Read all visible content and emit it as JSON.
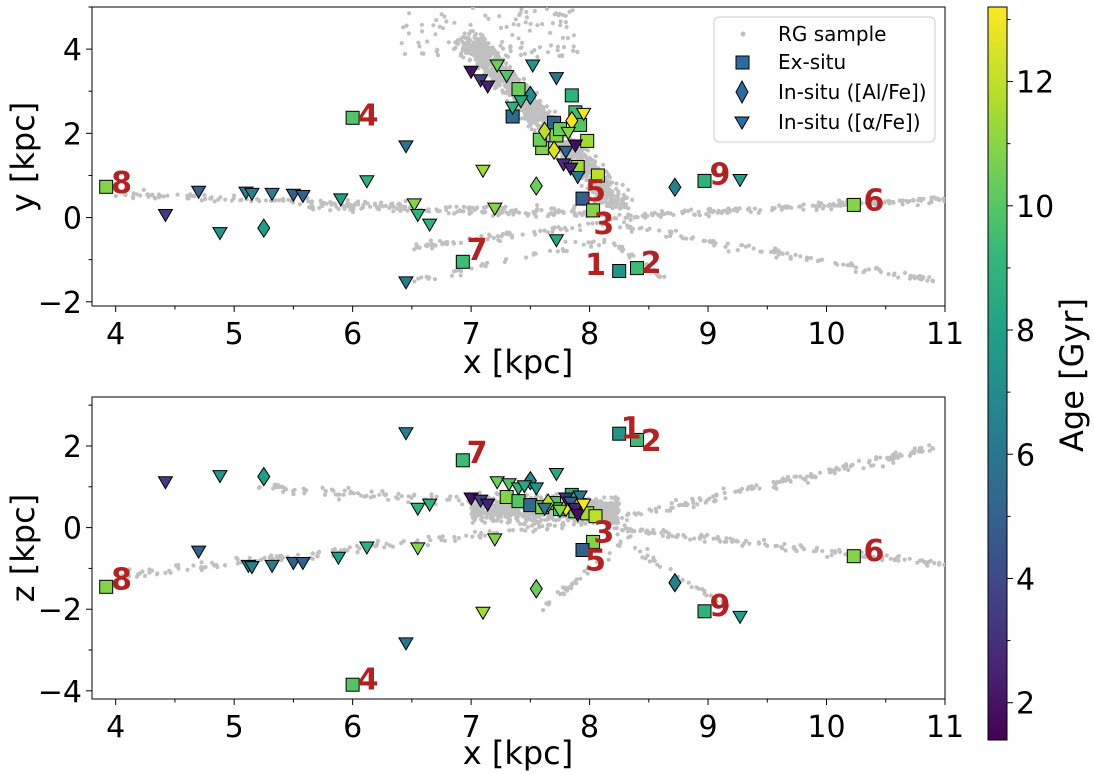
{
  "chart_data": [
    {
      "type": "scatter",
      "xlabel": "x [kpc]",
      "ylabel": "y [kpc]",
      "xlim": [
        3.8,
        11.0
      ],
      "ylim": [
        -2.1,
        5.0
      ],
      "xticks": [
        4,
        5,
        6,
        7,
        8,
        9,
        10,
        11
      ],
      "yticks": [
        -2,
        0,
        2,
        4
      ],
      "legend": {
        "position": "top-right",
        "entries": [
          {
            "label": "RG sample",
            "marker": "dot"
          },
          {
            "label": "Ex-situ",
            "marker": "square"
          },
          {
            "label": "In-situ ([Al/Fe])",
            "marker": "diamond"
          },
          {
            "label": "In-situ ([α/Fe])",
            "marker": "triangle"
          }
        ]
      },
      "labels": [
        {
          "text": "1",
          "x": 8.05,
          "y": -1.1
        },
        {
          "text": "2",
          "x": 8.52,
          "y": -1.05
        },
        {
          "text": "3",
          "x": 8.12,
          "y": -0.13
        },
        {
          "text": "4",
          "x": 6.13,
          "y": 2.45
        },
        {
          "text": "5",
          "x": 8.05,
          "y": 0.65
        },
        {
          "text": "6",
          "x": 10.4,
          "y": 0.43
        },
        {
          "text": "7",
          "x": 7.05,
          "y": -0.75
        },
        {
          "text": "8",
          "x": 4.05,
          "y": 0.85
        },
        {
          "text": "9",
          "x": 9.1,
          "y": 1.05
        }
      ],
      "series": [
        {
          "name": "Ex-situ",
          "marker": "square",
          "points": [
            {
              "x": 3.92,
              "y": 0.73,
              "age": 11.0
            },
            {
              "x": 6.0,
              "y": 2.37,
              "age": 10.0
            },
            {
              "x": 6.93,
              "y": -1.05,
              "age": 9.5
            },
            {
              "x": 7.6,
              "y": 1.65,
              "age": 11.0
            },
            {
              "x": 7.35,
              "y": 2.4,
              "age": 5.5
            },
            {
              "x": 7.4,
              "y": 3.05,
              "age": 10.5
            },
            {
              "x": 7.7,
              "y": 2.25,
              "age": 5.0
            },
            {
              "x": 7.72,
              "y": 1.95,
              "age": 11.0
            },
            {
              "x": 7.75,
              "y": 2.1,
              "age": 10.5
            },
            {
              "x": 7.85,
              "y": 2.9,
              "age": 9.0
            },
            {
              "x": 7.88,
              "y": 2.5,
              "age": 9.5
            },
            {
              "x": 7.92,
              "y": 2.2,
              "age": 10.0
            },
            {
              "x": 7.58,
              "y": 1.85,
              "age": 10.5
            },
            {
              "x": 7.98,
              "y": 1.82,
              "age": 11.5
            },
            {
              "x": 7.9,
              "y": 1.2,
              "age": 11.5
            },
            {
              "x": 8.07,
              "y": 1.0,
              "age": 12.0
            },
            {
              "x": 7.94,
              "y": 0.45,
              "age": 5.0
            },
            {
              "x": 8.03,
              "y": 0.17,
              "age": 11.0
            },
            {
              "x": 8.25,
              "y": -1.27,
              "age": 7.5
            },
            {
              "x": 8.4,
              "y": -1.2,
              "age": 9.5
            },
            {
              "x": 8.97,
              "y": 0.87,
              "age": 9.0
            },
            {
              "x": 10.23,
              "y": 0.3,
              "age": 11.0
            }
          ]
        },
        {
          "name": "In-situ ([Al/Fe])",
          "marker": "diamond",
          "points": [
            {
              "x": 5.25,
              "y": -0.25,
              "age": 8.0
            },
            {
              "x": 7.5,
              "y": 2.9,
              "age": 7.0
            },
            {
              "x": 7.55,
              "y": 0.75,
              "age": 10.5
            },
            {
              "x": 7.62,
              "y": 2.05,
              "age": 12.0
            },
            {
              "x": 7.7,
              "y": 1.6,
              "age": 12.5
            },
            {
              "x": 7.85,
              "y": 2.3,
              "age": 13.0
            },
            {
              "x": 8.72,
              "y": 0.72,
              "age": 6.5
            }
          ]
        },
        {
          "name": "In-situ ([α/Fe])",
          "marker": "triangle",
          "points": [
            {
              "x": 4.42,
              "y": 0.05,
              "age": 3.5
            },
            {
              "x": 4.7,
              "y": 0.6,
              "age": 5.0
            },
            {
              "x": 4.88,
              "y": -0.38,
              "age": 7.5
            },
            {
              "x": 5.1,
              "y": 0.58,
              "age": 6.5
            },
            {
              "x": 5.15,
              "y": 0.55,
              "age": 6.5
            },
            {
              "x": 5.32,
              "y": 0.55,
              "age": 6.5
            },
            {
              "x": 5.5,
              "y": 0.53,
              "age": 5.0
            },
            {
              "x": 5.58,
              "y": 0.5,
              "age": 5.0
            },
            {
              "x": 5.9,
              "y": 0.42,
              "age": 8.0
            },
            {
              "x": 6.12,
              "y": 0.85,
              "age": 9.0
            },
            {
              "x": 6.45,
              "y": 1.68,
              "age": 6.0
            },
            {
              "x": 6.45,
              "y": -1.55,
              "age": 6.5
            },
            {
              "x": 6.52,
              "y": 0.3,
              "age": 11.0
            },
            {
              "x": 6.55,
              "y": 0.05,
              "age": 9.0
            },
            {
              "x": 6.65,
              "y": -0.18,
              "age": 9.0
            },
            {
              "x": 7.0,
              "y": 3.45,
              "age": 2.0
            },
            {
              "x": 7.08,
              "y": 3.25,
              "age": 3.5
            },
            {
              "x": 7.14,
              "y": 3.1,
              "age": 2.5
            },
            {
              "x": 7.1,
              "y": 1.1,
              "age": 11.5
            },
            {
              "x": 7.2,
              "y": 0.2,
              "age": 11.0
            },
            {
              "x": 7.22,
              "y": 3.6,
              "age": 10.5
            },
            {
              "x": 7.3,
              "y": 3.35,
              "age": 10.0
            },
            {
              "x": 7.35,
              "y": 2.6,
              "age": 9.0
            },
            {
              "x": 7.42,
              "y": 2.75,
              "age": 8.5
            },
            {
              "x": 7.52,
              "y": 3.6,
              "age": 7.5
            },
            {
              "x": 7.72,
              "y": 3.3,
              "age": 6.0
            },
            {
              "x": 7.72,
              "y": -0.55,
              "age": 8.5
            },
            {
              "x": 7.78,
              "y": 1.25,
              "age": 3.0
            },
            {
              "x": 7.8,
              "y": 1.55,
              "age": 5.0
            },
            {
              "x": 7.84,
              "y": 1.15,
              "age": 2.5
            },
            {
              "x": 7.88,
              "y": 1.7,
              "age": 1.8
            },
            {
              "x": 7.9,
              "y": 0.95,
              "age": 6.0
            },
            {
              "x": 7.95,
              "y": 2.45,
              "age": 13.0
            },
            {
              "x": 7.82,
              "y": 2.0,
              "age": 11.0
            },
            {
              "x": 9.27,
              "y": 0.88,
              "age": 8.0
            }
          ]
        }
      ]
    },
    {
      "type": "scatter",
      "xlabel": "x [kpc]",
      "ylabel": "z [kpc]",
      "xlim": [
        3.8,
        11.0
      ],
      "ylim": [
        -4.2,
        3.2
      ],
      "xticks": [
        4,
        5,
        6,
        7,
        8,
        9,
        10,
        11
      ],
      "yticks": [
        -4,
        -2,
        0,
        2
      ],
      "labels": [
        {
          "text": "1",
          "x": 8.35,
          "y": 2.45
        },
        {
          "text": "2",
          "x": 8.52,
          "y": 2.15
        },
        {
          "text": "3",
          "x": 8.12,
          "y": -0.1
        },
        {
          "text": "4",
          "x": 6.13,
          "y": -3.7
        },
        {
          "text": "5",
          "x": 8.05,
          "y": -0.78
        },
        {
          "text": "6",
          "x": 10.4,
          "y": -0.55
        },
        {
          "text": "7",
          "x": 7.05,
          "y": 1.85
        },
        {
          "text": "8",
          "x": 4.05,
          "y": -1.25
        },
        {
          "text": "9",
          "x": 9.1,
          "y": -1.9
        }
      ],
      "series": [
        {
          "name": "Ex-situ",
          "marker": "square",
          "points": [
            {
              "x": 3.92,
              "y": -1.45,
              "age": 11.0
            },
            {
              "x": 6.0,
              "y": -3.85,
              "age": 10.0
            },
            {
              "x": 6.93,
              "y": 1.65,
              "age": 9.5
            },
            {
              "x": 7.3,
              "y": 0.75,
              "age": 11.0
            },
            {
              "x": 7.4,
              "y": 0.65,
              "age": 10.0
            },
            {
              "x": 7.5,
              "y": 0.55,
              "age": 5.5
            },
            {
              "x": 7.6,
              "y": 0.5,
              "age": 11.0
            },
            {
              "x": 7.7,
              "y": 0.6,
              "age": 10.0
            },
            {
              "x": 7.75,
              "y": 0.45,
              "age": 9.5
            },
            {
              "x": 7.85,
              "y": 0.8,
              "age": 9.0
            },
            {
              "x": 7.88,
              "y": 0.4,
              "age": 10.5
            },
            {
              "x": 7.92,
              "y": 0.55,
              "age": 11.5
            },
            {
              "x": 7.98,
              "y": 0.35,
              "age": 11.5
            },
            {
              "x": 8.05,
              "y": 0.28,
              "age": 12.0
            },
            {
              "x": 8.03,
              "y": -0.35,
              "age": 11.0
            },
            {
              "x": 7.94,
              "y": -0.55,
              "age": 5.0
            },
            {
              "x": 8.25,
              "y": 2.3,
              "age": 7.5
            },
            {
              "x": 8.4,
              "y": 2.15,
              "age": 9.5
            },
            {
              "x": 8.97,
              "y": -2.05,
              "age": 9.0
            },
            {
              "x": 10.23,
              "y": -0.7,
              "age": 11.0
            }
          ]
        },
        {
          "name": "In-situ ([Al/Fe])",
          "marker": "diamond",
          "points": [
            {
              "x": 5.25,
              "y": 1.25,
              "age": 8.0
            },
            {
              "x": 7.5,
              "y": 1.15,
              "age": 7.0
            },
            {
              "x": 7.55,
              "y": -1.5,
              "age": 10.5
            },
            {
              "x": 7.65,
              "y": 0.6,
              "age": 12.0
            },
            {
              "x": 7.8,
              "y": 0.5,
              "age": 13.0
            },
            {
              "x": 8.72,
              "y": -1.35,
              "age": 6.5
            }
          ]
        },
        {
          "name": "In-situ ([α/Fe])",
          "marker": "triangle",
          "points": [
            {
              "x": 4.42,
              "y": 1.1,
              "age": 3.5
            },
            {
              "x": 4.7,
              "y": -0.6,
              "age": 5.0
            },
            {
              "x": 4.88,
              "y": 1.25,
              "age": 7.5
            },
            {
              "x": 5.12,
              "y": -0.95,
              "age": 6.5
            },
            {
              "x": 5.15,
              "y": -0.98,
              "age": 6.5
            },
            {
              "x": 5.32,
              "y": -0.95,
              "age": 6.5
            },
            {
              "x": 5.5,
              "y": -0.88,
              "age": 5.0
            },
            {
              "x": 5.58,
              "y": -0.88,
              "age": 5.0
            },
            {
              "x": 5.88,
              "y": -0.75,
              "age": 8.0
            },
            {
              "x": 6.12,
              "y": -0.5,
              "age": 9.0
            },
            {
              "x": 6.45,
              "y": 2.3,
              "age": 6.5
            },
            {
              "x": 6.45,
              "y": -2.85,
              "age": 6.0
            },
            {
              "x": 6.55,
              "y": -0.52,
              "age": 11.0
            },
            {
              "x": 6.55,
              "y": 0.45,
              "age": 9.0
            },
            {
              "x": 6.65,
              "y": 0.55,
              "age": 9.0
            },
            {
              "x": 7.0,
              "y": 0.7,
              "age": 2.0
            },
            {
              "x": 7.08,
              "y": 0.65,
              "age": 3.5
            },
            {
              "x": 7.14,
              "y": 0.55,
              "age": 2.5
            },
            {
              "x": 7.1,
              "y": -2.1,
              "age": 11.5
            },
            {
              "x": 7.2,
              "y": -0.3,
              "age": 11.0
            },
            {
              "x": 7.22,
              "y": 1.1,
              "age": 10.5
            },
            {
              "x": 7.32,
              "y": 1.05,
              "age": 10.0
            },
            {
              "x": 7.4,
              "y": 0.95,
              "age": 9.0
            },
            {
              "x": 7.45,
              "y": 1.0,
              "age": 8.5
            },
            {
              "x": 7.55,
              "y": 0.95,
              "age": 7.5
            },
            {
              "x": 7.72,
              "y": 1.3,
              "age": 8.5
            },
            {
              "x": 7.62,
              "y": 0.45,
              "age": 6.0
            },
            {
              "x": 7.8,
              "y": 0.7,
              "age": 3.0
            },
            {
              "x": 7.84,
              "y": 0.6,
              "age": 5.0
            },
            {
              "x": 7.88,
              "y": 0.45,
              "age": 2.5
            },
            {
              "x": 7.9,
              "y": 0.3,
              "age": 1.8
            },
            {
              "x": 7.92,
              "y": 0.75,
              "age": 6.0
            },
            {
              "x": 7.95,
              "y": 0.55,
              "age": 13.0
            },
            {
              "x": 7.75,
              "y": 0.4,
              "age": 11.0
            },
            {
              "x": 9.27,
              "y": -2.2,
              "age": 8.0
            }
          ]
        }
      ]
    },
    {
      "type": "colorbar",
      "label": "Age [Gyr]",
      "range": [
        1.4,
        13.2
      ],
      "ticks": [
        2,
        4,
        6,
        8,
        10,
        12
      ],
      "colormap": "viridis"
    }
  ],
  "colors": {
    "background_points": "#c0c0c0",
    "label_color": "#b22222",
    "legend_square": "#2b6ca3",
    "viridis": [
      "#440154",
      "#482878",
      "#3e4989",
      "#31688e",
      "#26828e",
      "#1f9e89",
      "#35b779",
      "#6ece58",
      "#b5de2b",
      "#fde725"
    ]
  }
}
